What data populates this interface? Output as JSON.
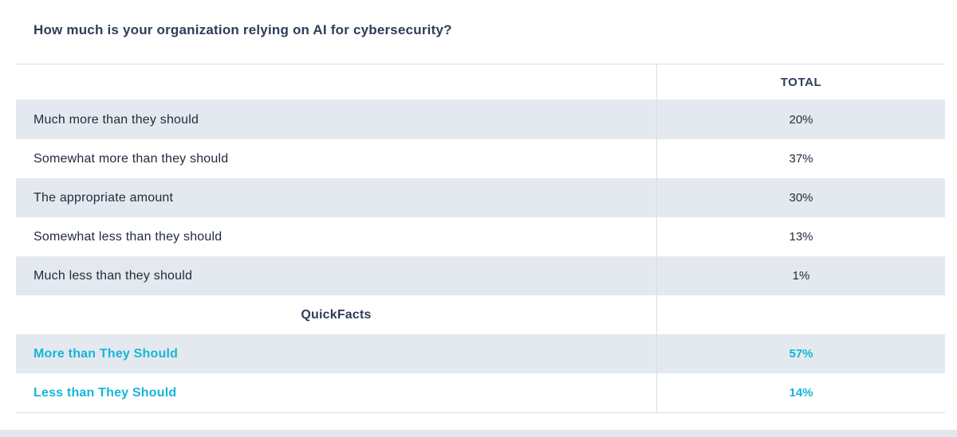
{
  "page": {
    "title": "How much is your organization relying on AI for cybersecurity?"
  },
  "table": {
    "header_total": "TOTAL",
    "rows": [
      {
        "label": "Much more than they should",
        "value": "20%",
        "type": "data"
      },
      {
        "label": "Somewhat more than they should",
        "value": "37%",
        "type": "data"
      },
      {
        "label": "The appropriate amount",
        "value": "30%",
        "type": "data"
      },
      {
        "label": "Somewhat less than they should",
        "value": "13%",
        "type": "data"
      },
      {
        "label": "Much less than they should",
        "value": "1%",
        "type": "data"
      },
      {
        "label": "QuickFacts",
        "value": "",
        "type": "section"
      },
      {
        "label": "More than They Should",
        "value": "57%",
        "type": "highlight"
      },
      {
        "label": "Less than They Should",
        "value": "14%",
        "type": "highlight"
      }
    ]
  },
  "colors": {
    "accent": "#16b5d8",
    "title-color": "#2e3d59",
    "text-color": "#222c3e",
    "row-alt": "#e4e9ef",
    "border-color": "#d9dee5"
  },
  "chart_data": {
    "type": "table",
    "title": "How much is your organization relying on AI for cybersecurity?",
    "columns": [
      "",
      "TOTAL"
    ],
    "rows": [
      [
        "Much more than they should",
        "20%"
      ],
      [
        "Somewhat more than they should",
        "37%"
      ],
      [
        "The appropriate amount",
        "30%"
      ],
      [
        "Somewhat less than they should",
        "13%"
      ],
      [
        "Much less than they should",
        "1%"
      ],
      [
        "QuickFacts",
        ""
      ],
      [
        "More than They Should",
        "57%"
      ],
      [
        "Less than They Should",
        "14%"
      ]
    ]
  }
}
